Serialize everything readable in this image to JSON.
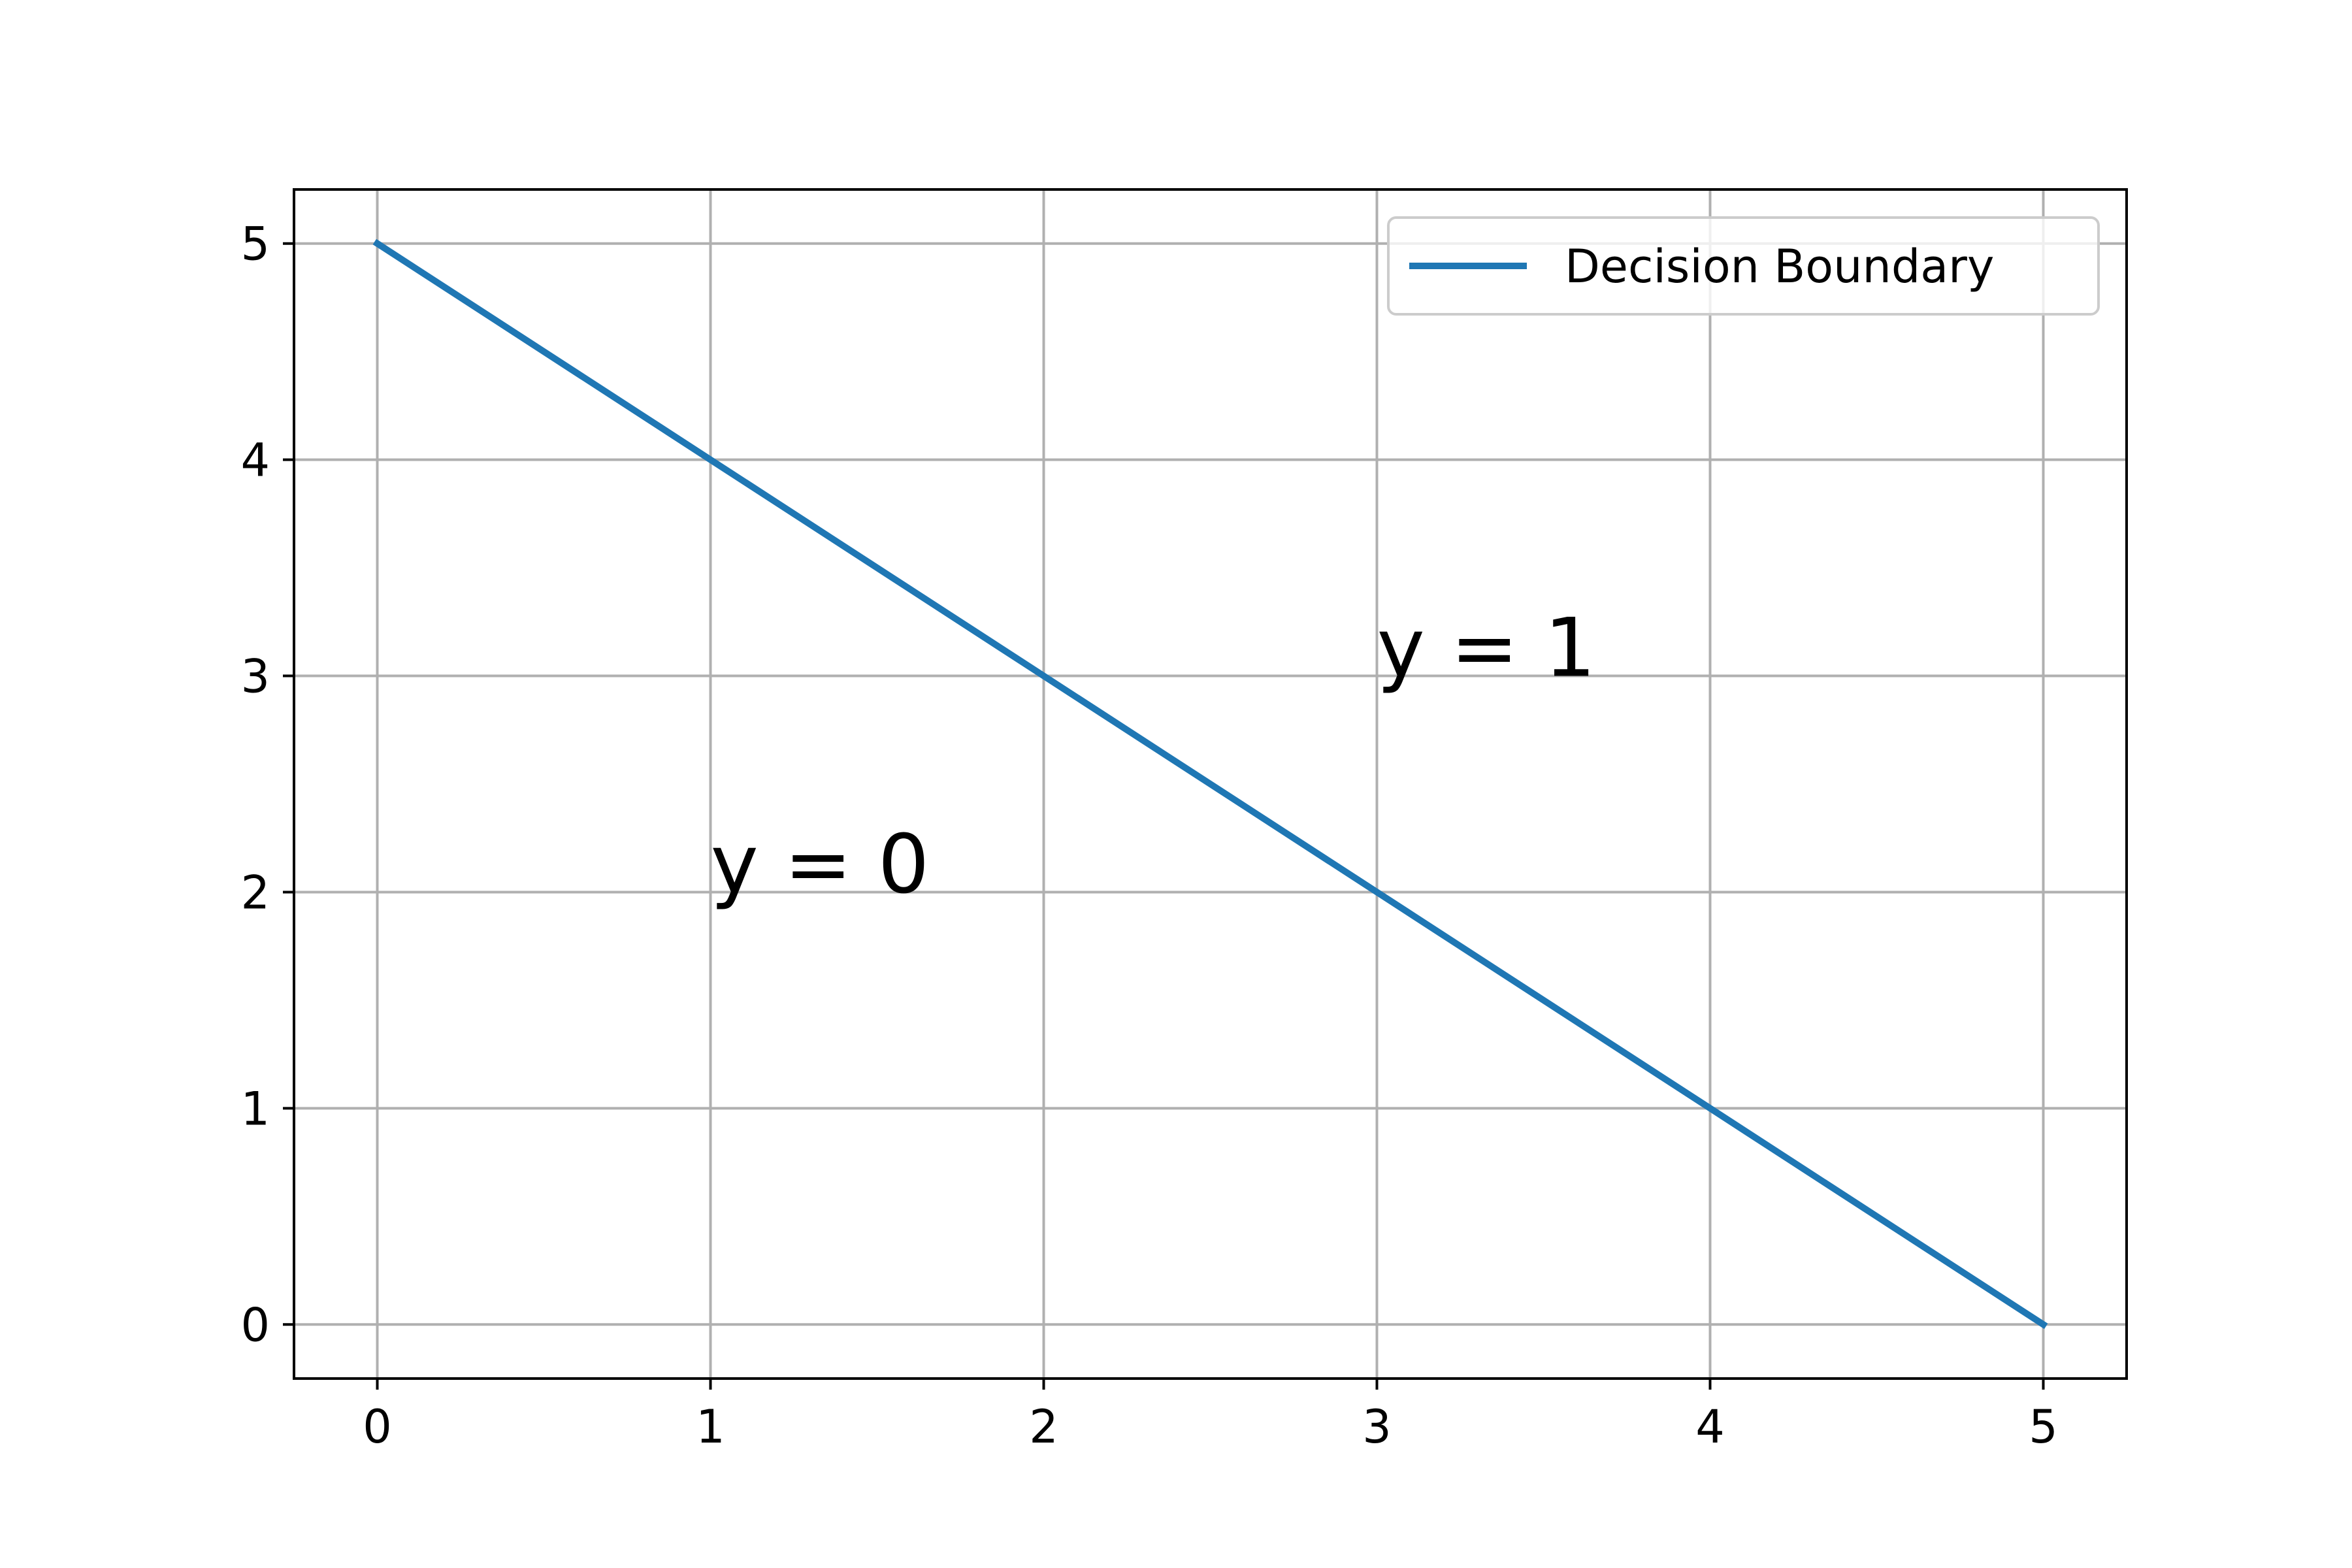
{
  "chart_data": {
    "type": "line",
    "title": "",
    "xlabel": "",
    "ylabel": "",
    "xlim": [
      -0.25,
      5.25
    ],
    "ylim": [
      -0.25,
      5.25
    ],
    "xticks": [
      0,
      1,
      2,
      3,
      4,
      5
    ],
    "yticks": [
      0,
      1,
      2,
      3,
      4,
      5
    ],
    "grid": true,
    "legend_position": "top-right",
    "series": [
      {
        "name": "Decision Boundary",
        "color": "#1f77b4",
        "x": [
          0,
          1,
          2,
          3,
          4,
          5
        ],
        "y": [
          5,
          4,
          3,
          2,
          1,
          0
        ]
      }
    ],
    "annotations": [
      {
        "text": "y = 0",
        "x": 1,
        "y": 2
      },
      {
        "text": "y = 1",
        "x": 3,
        "y": 3
      }
    ]
  }
}
